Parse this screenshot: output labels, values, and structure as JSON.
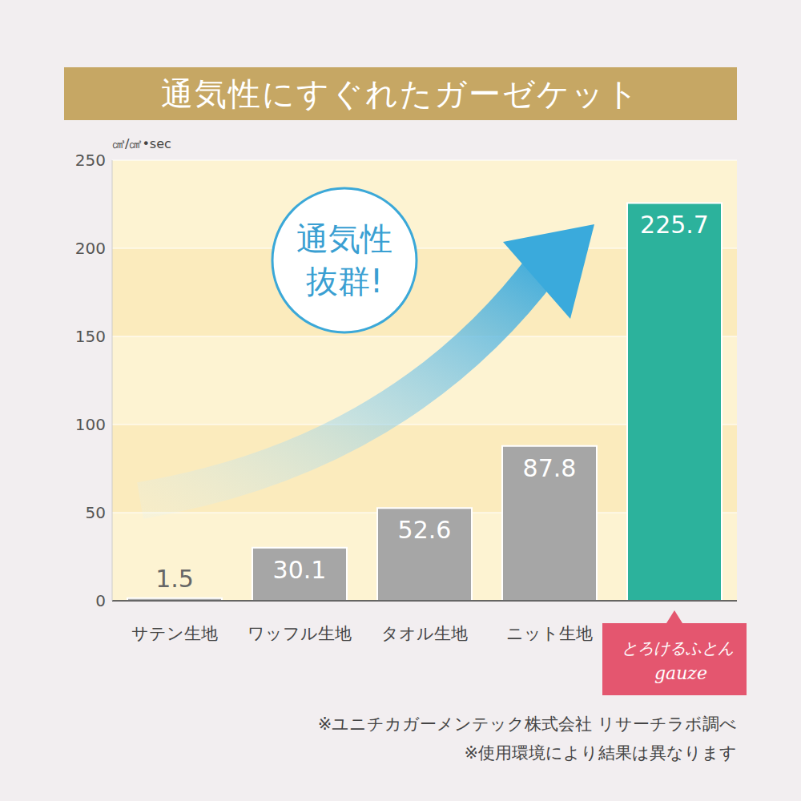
{
  "chart_data": {
    "type": "bar",
    "title": "通気性にすぐれたガーゼケット",
    "y_label": "㎤/㎠•sec",
    "annotation": [
      "通気性",
      "抜群!"
    ],
    "categories": [
      "サテン生地",
      "ワッフル生地",
      "タオル生地",
      "ニット生地",
      "とろけるふとん gauze"
    ],
    "values": [
      1.5,
      30.1,
      52.6,
      87.8,
      225.7
    ],
    "colors": [
      "#a6a6a6",
      "#a6a6a6",
      "#a6a6a6",
      "#a6a6a6",
      "#2cb29c"
    ],
    "ylim": [
      0,
      250
    ],
    "yticks": [
      0,
      50,
      100,
      150,
      200,
      250
    ],
    "grid": true,
    "data_labels": true,
    "notes": [
      "※ユニチカガーメンテック株式会社 リサーチラボ調べ",
      "※使用環境により結果は異なります"
    ]
  }
}
